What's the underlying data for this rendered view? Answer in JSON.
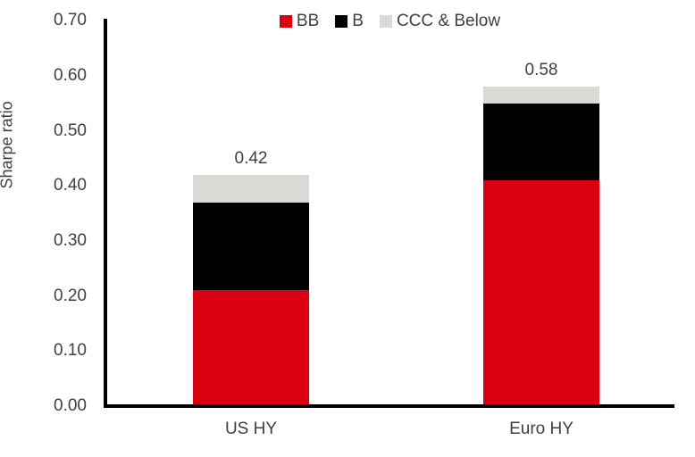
{
  "chart_data": {
    "type": "bar",
    "subtype": "stacked",
    "title": "",
    "xlabel": "",
    "ylabel": "Sharpe ratio",
    "categories": [
      "US HY",
      "Euro HY"
    ],
    "series": [
      {
        "name": "BB",
        "color": "#DB000F",
        "values": [
          0.21,
          0.41
        ]
      },
      {
        "name": "B",
        "color": "#000000",
        "values": [
          0.16,
          0.14
        ]
      },
      {
        "name": "CCC & Below",
        "color": "#D9D9D6",
        "values": [
          0.05,
          0.03
        ]
      }
    ],
    "totals": [
      0.42,
      0.58
    ],
    "total_labels": [
      "0.42",
      "0.58"
    ],
    "ylim": [
      0.0,
      0.7
    ],
    "ytick_step": 0.1,
    "ytick_labels": [
      "0.00",
      "0.10",
      "0.20",
      "0.30",
      "0.40",
      "0.50",
      "0.60",
      "0.70"
    ],
    "grid": false,
    "legend_position": "top-center",
    "axis_color": "#000000",
    "text_color": "#404040"
  }
}
